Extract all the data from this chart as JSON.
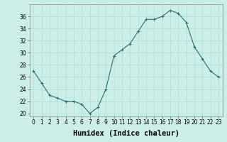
{
  "x": [
    0,
    1,
    2,
    3,
    4,
    5,
    6,
    7,
    8,
    9,
    10,
    11,
    12,
    13,
    14,
    15,
    16,
    17,
    18,
    19,
    20,
    21,
    22,
    23
  ],
  "y": [
    27,
    25,
    23,
    22.5,
    22,
    22,
    21.5,
    20,
    21,
    24,
    29.5,
    30.5,
    31.5,
    33.5,
    35.5,
    35.5,
    36,
    37,
    36.5,
    35,
    31,
    29,
    27,
    26
  ],
  "line_color": "#2d6e6e",
  "marker": "+",
  "marker_size": 3,
  "marker_linewidth": 0.8,
  "bg_color": "#cceee8",
  "grid_color": "#aaddcc",
  "xlabel": "Humidex (Indice chaleur)",
  "xlim": [
    -0.5,
    23.5
  ],
  "ylim": [
    19.5,
    38
  ],
  "yticks": [
    20,
    22,
    24,
    26,
    28,
    30,
    32,
    34,
    36
  ],
  "xtick_labels": [
    "0",
    "1",
    "2",
    "3",
    "4",
    "5",
    "6",
    "7",
    "8",
    "9",
    "10",
    "11",
    "12",
    "13",
    "14",
    "15",
    "16",
    "17",
    "18",
    "19",
    "20",
    "21",
    "22",
    "23"
  ],
  "tick_fontsize": 5.5,
  "xlabel_fontsize": 7.5,
  "line_width": 0.8
}
